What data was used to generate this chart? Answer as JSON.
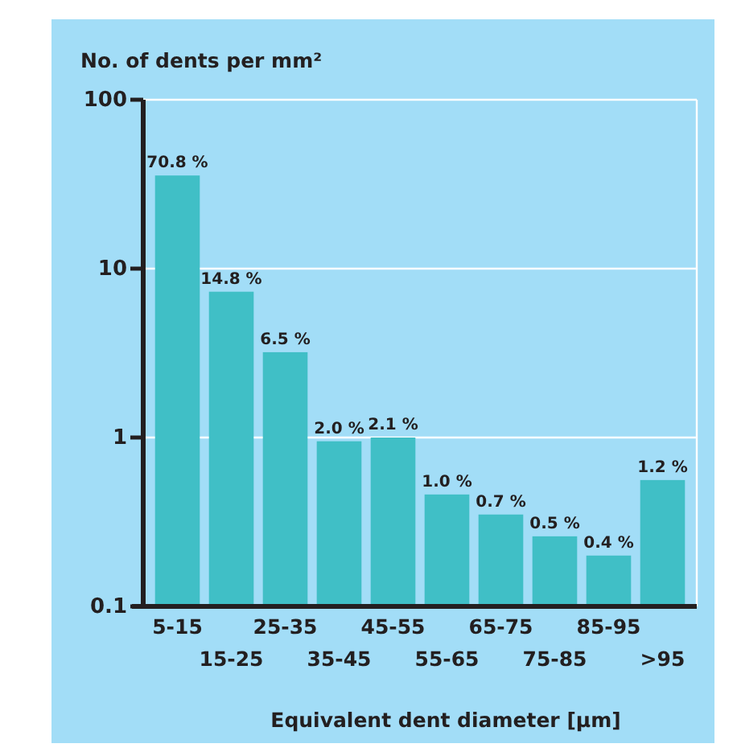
{
  "chart_data": {
    "type": "bar",
    "ylabel": "No. of dents per mm²",
    "xlabel": "Equivalent dent diameter [µm]",
    "categories": [
      "5-15",
      "15-25",
      "25-35",
      "35-45",
      "45-55",
      "55-65",
      "65-75",
      "75-85",
      "85-95",
      ">95"
    ],
    "values": [
      35.6,
      7.3,
      3.2,
      0.95,
      1.0,
      0.46,
      0.35,
      0.26,
      0.2,
      0.56
    ],
    "annotations": [
      {
        "text": "70.8 %",
        "x": "5-15",
        "y": 35.6
      },
      {
        "text": "14.8 %",
        "x": "15-25",
        "y": 7.3
      },
      {
        "text": "6.5 %",
        "x": "25-35",
        "y": 3.2
      },
      {
        "text": "2.0 %",
        "x": "35-45",
        "y": 0.95
      },
      {
        "text": "2.1 %",
        "x": "45-55",
        "y": 1.0
      },
      {
        "text": "1.0 %",
        "x": "55-65",
        "y": 0.46
      },
      {
        "text": "0.7 %",
        "x": "65-75",
        "y": 0.35
      },
      {
        "text": "0.5 %",
        "x": "75-85",
        "y": 0.26
      },
      {
        "text": "0.4 %",
        "x": "85-95",
        "y": 0.2
      },
      {
        "text": "1.2 %",
        "x": ">95",
        "y": 0.56
      }
    ],
    "color": "#40bfc6",
    "log": true,
    "ylim": [
      0.1,
      100
    ],
    "yticks": [
      0.1,
      1,
      10,
      100
    ],
    "grid": "y"
  }
}
